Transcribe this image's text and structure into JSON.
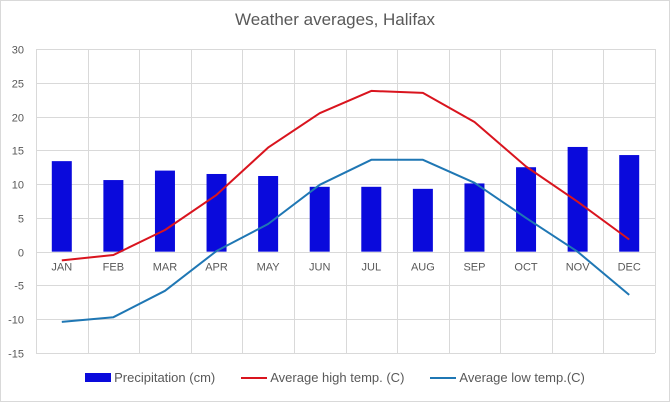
{
  "chart_data": {
    "type": "bar",
    "title": "Weather averages, Halifax",
    "xlabel": "",
    "ylabel": "",
    "ylim": [
      -15,
      30
    ],
    "yticks": [
      30,
      25,
      20,
      15,
      10,
      5,
      0,
      -5,
      -10,
      -15
    ],
    "ytick_labels": [
      "30",
      "25",
      "20",
      "15",
      "10",
      "5",
      "0",
      "-5",
      "-10",
      "-15"
    ],
    "grid": true,
    "legend_position": "bottom",
    "categories": [
      "JAN",
      "FEB",
      "MAR",
      "APR",
      "MAY",
      "JUN",
      "JUL",
      "AUG",
      "SEP",
      "OCT",
      "NOV",
      "DEC"
    ],
    "series": [
      {
        "name": "Precipitation (cm)",
        "kind": "bar",
        "color": "#0a0adc",
        "values": [
          13.4,
          10.6,
          12.0,
          11.5,
          11.2,
          9.6,
          9.6,
          9.3,
          10.1,
          12.5,
          15.5,
          14.3
        ]
      },
      {
        "name": "Average high temp. (C)",
        "kind": "line",
        "color": "#d9141e",
        "values": [
          -1.3,
          -0.5,
          3.2,
          8.4,
          15.4,
          20.5,
          23.8,
          23.5,
          19.2,
          12.6,
          7.4,
          1.8
        ]
      },
      {
        "name": "Average low temp.(C)",
        "kind": "line",
        "color": "#1f77b4",
        "values": [
          -10.4,
          -9.7,
          -5.8,
          0.1,
          4.1,
          9.9,
          13.6,
          13.6,
          10.2,
          5.0,
          0.0,
          -6.4
        ]
      }
    ]
  }
}
